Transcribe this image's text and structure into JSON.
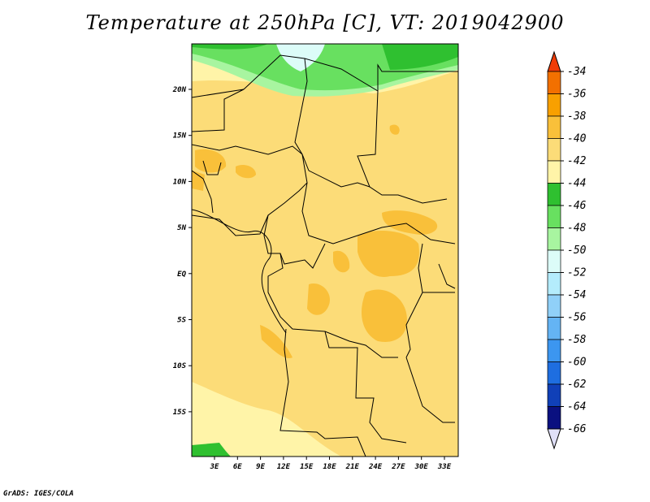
{
  "title": "Temperature at 250hPa [C], VT: 2019042900",
  "credit": "GrADS: IGES/COLA",
  "map": {
    "lat_ticks": [
      "20N",
      "15N",
      "10N",
      "5N",
      "EQ",
      "5S",
      "10S",
      "15S"
    ],
    "lon_ticks": [
      "3E",
      "6E",
      "9E",
      "12E",
      "15E",
      "18E",
      "21E",
      "24E",
      "27E",
      "30E",
      "33E"
    ]
  },
  "colorbar": {
    "levels": [
      "-34",
      "-36",
      "-38",
      "-40",
      "-42",
      "-44",
      "-46",
      "-48",
      "-50",
      "-52",
      "-54",
      "-56",
      "-58",
      "-60",
      "-62",
      "-64",
      "-66"
    ],
    "colors": [
      "#f03c08",
      "#f27000",
      "#f8a000",
      "#f9c03a",
      "#fcdc78",
      "#fff4a8",
      "#2fc030",
      "#68e060",
      "#a8f5a0",
      "#dcfcf8",
      "#b4ecfc",
      "#90d0f8",
      "#64b4f4",
      "#3c96f0",
      "#1e6ee0",
      "#1040b8",
      "#0a1080",
      "#e0e0f8"
    ]
  }
}
